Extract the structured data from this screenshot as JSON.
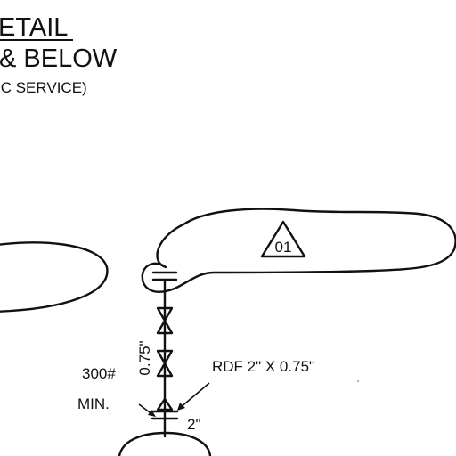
{
  "title": {
    "line1": "ETAIL",
    "line2": "& BELOW",
    "line3": "IC SERVICE)"
  },
  "callout": {
    "tag": "01"
  },
  "labels": {
    "size_075": "0.75\"",
    "rdf": "RDF 2\" X 0.75\"",
    "rating": "300#",
    "min": "MIN.",
    "size_2": "2\""
  }
}
